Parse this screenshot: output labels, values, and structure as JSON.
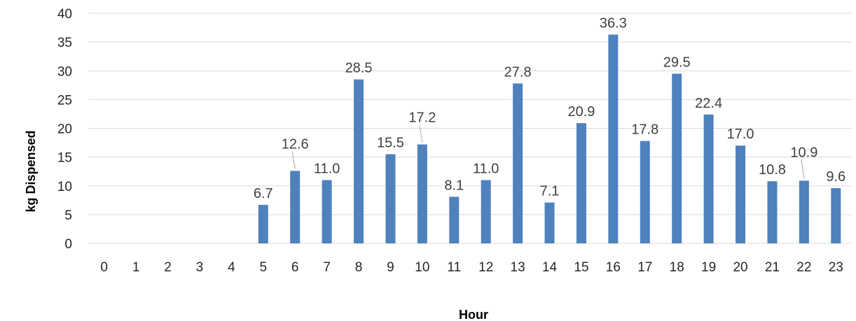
{
  "chart_data": {
    "type": "bar",
    "title": "",
    "xlabel": "Hour",
    "ylabel": "kg Dispensed",
    "categories": [
      "0",
      "1",
      "2",
      "3",
      "4",
      "5",
      "6",
      "7",
      "8",
      "9",
      "10",
      "11",
      "12",
      "13",
      "14",
      "15",
      "16",
      "17",
      "18",
      "19",
      "20",
      "21",
      "22",
      "23"
    ],
    "values": [
      null,
      null,
      null,
      null,
      null,
      6.7,
      12.6,
      11.0,
      28.5,
      15.5,
      17.2,
      8.1,
      11.0,
      27.8,
      7.1,
      20.9,
      36.3,
      17.8,
      29.5,
      22.4,
      17.0,
      10.8,
      10.9,
      9.6
    ],
    "data_labels": [
      "",
      "",
      "",
      "",
      "",
      "6.7",
      "12.6",
      "11.0",
      "28.5",
      "15.5",
      "17.2",
      "8.1",
      "11.0",
      "27.8",
      "7.1",
      "20.9",
      "36.3",
      "17.8",
      "29.5",
      "22.4",
      "17.0",
      "10.8",
      "10.9",
      "9.6"
    ],
    "ylim": [
      0,
      40
    ],
    "yticks": [
      0,
      5,
      10,
      15,
      20,
      25,
      30,
      35,
      40
    ],
    "grid": true,
    "legend": "none",
    "bar_color": "#4f81bd"
  }
}
